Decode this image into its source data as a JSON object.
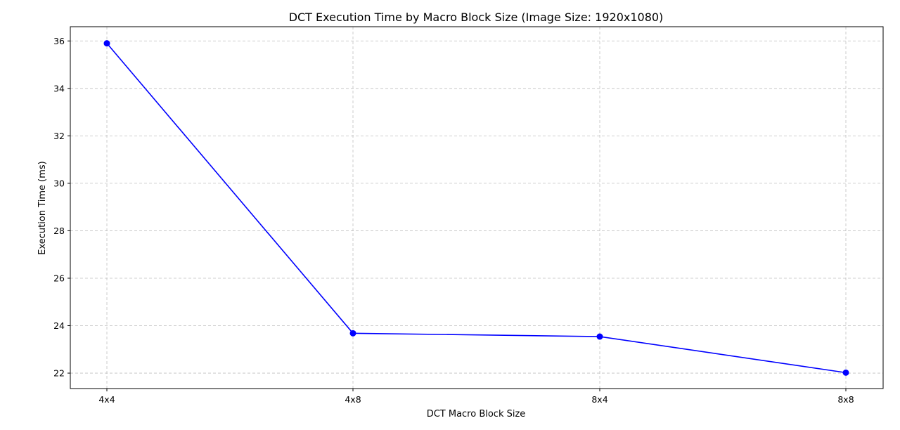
{
  "chart_data": {
    "type": "line",
    "title": "DCT Execution Time by Macro Block Size (Image Size: 1920x1080)",
    "xlabel": "DCT Macro Block Size",
    "ylabel": "Execution Time (ms)",
    "categories": [
      "4x4",
      "4x8",
      "8x4",
      "8x8"
    ],
    "series": [
      {
        "values": [
          35.9,
          23.68,
          23.54,
          22.02
        ]
      }
    ],
    "ylim": [
      21.35,
      36.6
    ],
    "yticks": [
      22,
      24,
      26,
      28,
      30,
      32,
      34,
      36
    ],
    "ytick_labels": [
      "22",
      "24",
      "26",
      "28",
      "30",
      "32",
      "34",
      "36"
    ],
    "grid": true,
    "colors": {
      "line": "#0000ff",
      "marker": "#0000ff"
    }
  }
}
